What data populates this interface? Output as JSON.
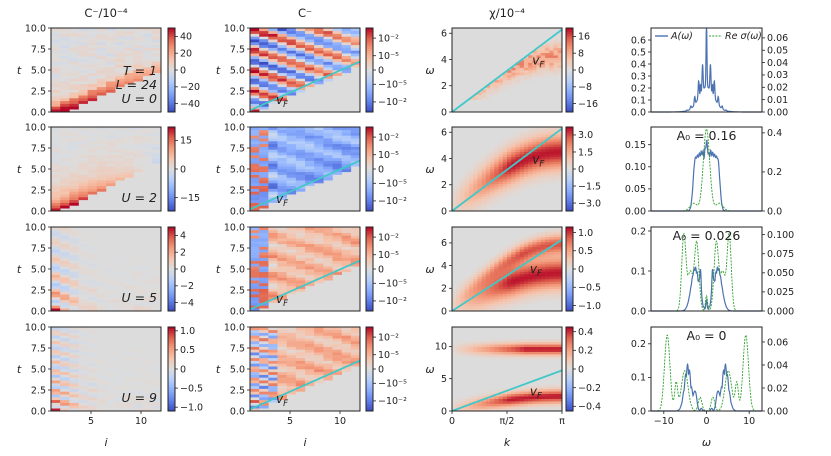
{
  "figure": {
    "col_titles": [
      "C⁻/10⁻⁴",
      "C⁻",
      "χ/10⁻⁴",
      ""
    ],
    "xlabels": [
      "i",
      "i",
      "k",
      "ω"
    ],
    "row_labels": [
      "U = 0",
      "U = 2",
      "U = 5",
      "U = 9"
    ],
    "param_labels": [
      "T = 1",
      "L = 24"
    ],
    "velocity_label": "v_F",
    "legend": [
      "A(ω)",
      "Re σ(ω)"
    ],
    "A0_labels": [
      "",
      "A₀ = 0.16",
      "A₀ = 0.026",
      "A₀ = 0"
    ],
    "colors": {
      "line_blue": "#4c72b0",
      "line_green": "#2ca02c",
      "fermi_line": "#40c8c8",
      "bg_gray": "#dcdcdc"
    }
  },
  "chart_data": [
    {
      "type": "heatmap",
      "panel": "col1",
      "title": "C⁻/10⁻⁴",
      "xlabel": "i",
      "ylabel": "t",
      "xticks": [
        "5",
        "10"
      ],
      "xlim": [
        1,
        12
      ],
      "yticks": [
        "0.0",
        "2.5",
        "5.0",
        "7.5",
        "10.0"
      ],
      "ylim": [
        0,
        10
      ],
      "colorbar_ticks": [
        [
          "40",
          "20",
          "0",
          "−20",
          "−40"
        ],
        [
          "15",
          "0",
          "−15"
        ],
        [
          "4",
          "2",
          "0",
          "−2",
          "−4"
        ],
        [
          "1.0",
          "0.5",
          "0",
          "−0.5",
          "−1.0"
        ]
      ],
      "colorbar_range": [
        [
          -50,
          50
        ],
        [
          -22,
          22
        ],
        [
          -5,
          5
        ],
        [
          -1.1,
          1.1
        ]
      ]
    },
    {
      "type": "heatmap",
      "panel": "col2",
      "title": "C⁻",
      "xlabel": "i",
      "ylabel": "t",
      "xticks": [
        "5",
        "10"
      ],
      "xlim": [
        1,
        12
      ],
      "yticks": [
        "0.0",
        "2.5",
        "5.0",
        "7.5",
        "10.0"
      ],
      "ylim": [
        0,
        10
      ],
      "colorbar_ticks": [
        "10⁻²",
        "10⁻⁵",
        "0",
        "−10⁻⁵",
        "−10⁻²"
      ],
      "fermi_velocity_line": {
        "from": [
          1,
          0.2
        ],
        "to": [
          12,
          6.0
        ]
      }
    },
    {
      "type": "heatmap",
      "panel": "col3",
      "title": "χ/10⁻⁴",
      "xlabel": "k",
      "ylabel": "ω",
      "xticks": [
        "0",
        "π/2",
        "π"
      ],
      "yticks": [
        [
          "0",
          "2",
          "4",
          "6"
        ],
        [
          "0",
          "2",
          "4",
          "6"
        ],
        [
          "0",
          "2",
          "4",
          "6"
        ],
        [
          "0",
          "5",
          "10"
        ]
      ],
      "ylim": [
        [
          0,
          6.4
        ],
        [
          0,
          6.4
        ],
        [
          0,
          7.4
        ],
        [
          0,
          13
        ]
      ],
      "colorbar_ticks": [
        [
          "16",
          "8",
          "0",
          "−8",
          "−16"
        ],
        [
          "3.0",
          "1.5",
          "0",
          "−1.5",
          "−3.0"
        ],
        [
          "1.0",
          "0.5",
          "0",
          "−0.5",
          "−1.0"
        ],
        [
          "0.4",
          "0.2",
          "0",
          "−0.2",
          "−0.4"
        ]
      ],
      "colorbar_range": [
        [
          -20,
          20
        ],
        [
          -3.7,
          3.7
        ],
        [
          -1.15,
          1.15
        ],
        [
          -0.45,
          0.45
        ]
      ],
      "fermi_velocity_line": {
        "slope_per_k": 2.0
      }
    },
    {
      "type": "line",
      "panel": "col4",
      "xlabel": "ω",
      "xlim": [
        -13,
        13
      ],
      "xticks": [
        "−10",
        "0",
        "10"
      ],
      "series": [
        {
          "name": "A(ω)",
          "axis": "left"
        },
        {
          "name": "Re σ(ω)",
          "axis": "right"
        }
      ],
      "left_ticks": [
        [
          "0.0",
          "0.1",
          "0.2",
          "0.3",
          "0.4",
          "0.5",
          "0.6"
        ],
        [
          "0.00",
          "0.05",
          "0.10",
          "0.15"
        ],
        [
          "0.0",
          "0.1",
          "0.2"
        ],
        [
          "0.0",
          "0.1",
          "0.2"
        ]
      ],
      "left_ylim": [
        [
          0,
          0.7
        ],
        [
          0,
          0.19
        ],
        [
          0,
          0.21
        ],
        [
          0,
          0.25
        ]
      ],
      "right_ticks": [
        [
          "0.00",
          "0.01",
          "0.02",
          "0.03",
          "0.04",
          "0.05",
          "0.06"
        ],
        [
          "0.0",
          "0.2",
          "0.4"
        ],
        [
          "0.000",
          "0.025",
          "0.050",
          "0.075",
          "0.100"
        ],
        [
          "0.00",
          "0.02",
          "0.04",
          "0.06"
        ]
      ],
      "right_ylim": [
        [
          0,
          0.068
        ],
        [
          0,
          0.43
        ],
        [
          0,
          0.11
        ],
        [
          0,
          0.073
        ]
      ],
      "peaks": {
        "A_omega": [
          [
            0,
            0.52
          ],
          [
            1.6,
            0.5
          ],
          [
            2.0,
            0.45
          ]
        ],
        "Re_sigma_peak_omega": [
          0,
          0,
          2.3,
          9.2
        ]
      }
    }
  ]
}
